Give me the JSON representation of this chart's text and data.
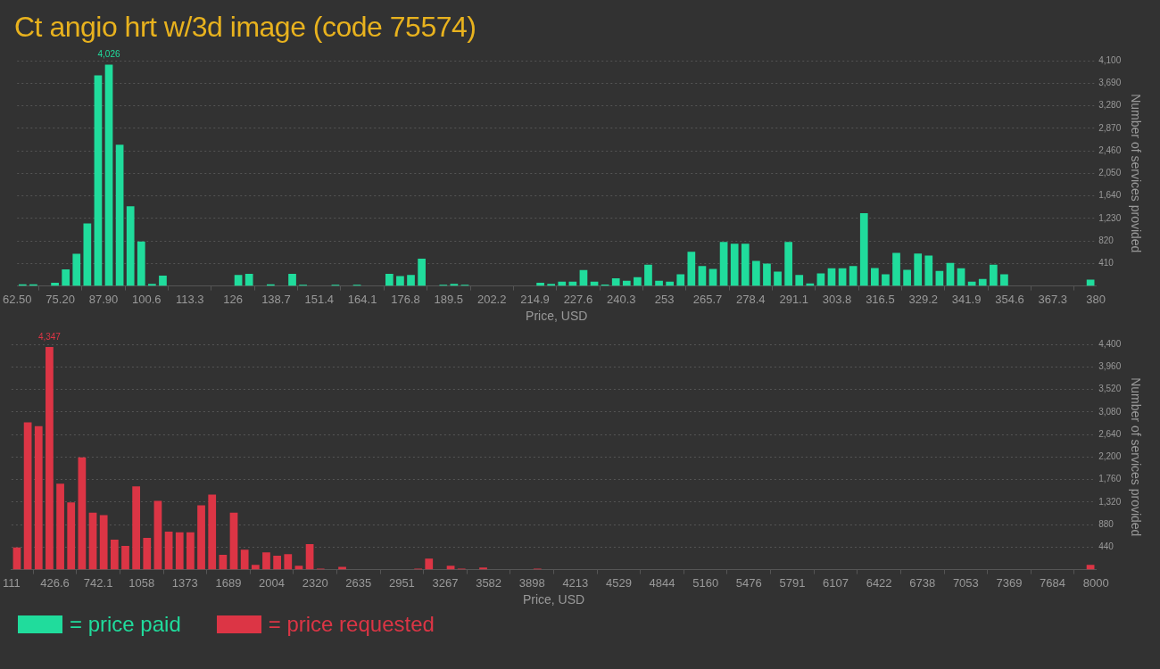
{
  "chart_data": [
    {
      "type": "histogram",
      "title": "Ct angio hrt w/3d image (code 75574)",
      "xlabel": "Price, USD",
      "ylabel": "Number of services provided",
      "grid": "y",
      "legend": "bottom left",
      "bins": [
        62.5,
        65.675,
        68.85,
        72.025,
        75.2,
        78.375,
        81.55,
        84.725,
        87.9,
        91.075,
        94.25,
        97.425,
        100.6,
        103.775,
        106.95,
        110.125,
        113.3,
        116.475,
        119.65,
        122.825,
        126,
        129.175,
        132.35,
        135.525,
        138.7,
        141.875,
        145.05,
        148.225,
        151.4,
        154.575,
        157.75,
        160.925,
        164.1,
        167.275,
        170.45,
        173.625,
        176.8,
        179.975,
        183.15,
        186.325,
        189.5,
        192.675,
        195.85,
        199.025,
        202.2,
        205.375,
        208.55,
        211.725,
        214.9,
        218.075,
        221.25,
        224.425,
        227.6,
        230.775,
        233.95,
        237.125,
        240.3,
        243.475,
        246.65,
        249.825,
        253,
        256.175,
        259.35,
        262.525,
        265.7,
        268.875,
        272.05,
        275.225,
        278.4,
        281.575,
        284.75,
        287.925,
        291.1,
        294.275,
        297.45,
        300.625,
        303.8,
        306.975,
        310.15,
        313.325,
        316.5,
        319.675,
        322.85,
        326.025,
        329.2,
        332.375,
        335.55,
        338.725,
        341.9,
        345.075,
        348.25,
        351.425,
        354.6,
        357.775,
        360.95,
        364.125,
        367.3,
        370.475,
        373.65,
        376.825,
        380
      ],
      "series": [
        {
          "name": "= price paid",
          "color": "#20dc9c",
          "values": [
            30,
            30,
            0,
            57,
            301,
            584,
            1137,
            3831,
            4026,
            2569,
            1451,
            810,
            38,
            188,
            0,
            0,
            0,
            0,
            0,
            0,
            200,
            220,
            0,
            30,
            0,
            220,
            20,
            0,
            0,
            20,
            0,
            20,
            0,
            0,
            220,
            182,
            200,
            496,
            0,
            20,
            38,
            20,
            0,
            0,
            0,
            0,
            0,
            0,
            57,
            38,
            80,
            80,
            288,
            80,
            27,
            140,
            94,
            161,
            388,
            94,
            80,
            214,
            622,
            361,
            308,
            803,
            769,
            769,
            455,
            408,
            261,
            803,
            201,
            47,
            227,
            321,
            321,
            361,
            1325,
            328,
            214,
            602,
            294,
            589,
            555,
            274,
            421,
            321,
            80,
            127,
            388,
            214,
            0,
            0,
            0,
            0,
            0,
            0,
            0,
            114
          ],
          "value_labels": [
            null,
            null,
            null,
            null,
            null,
            null,
            null,
            null,
            "4,026",
            null,
            null,
            null,
            null,
            null,
            null,
            null,
            null,
            null,
            null,
            null,
            null,
            null,
            null,
            null,
            null,
            null,
            null,
            null,
            null,
            null,
            null,
            null,
            null,
            null,
            null,
            null,
            null,
            null,
            null,
            null,
            null,
            null,
            null,
            null,
            null,
            null,
            null,
            null,
            null,
            null,
            null,
            null,
            null,
            null,
            null,
            null,
            null,
            null,
            null,
            null,
            null,
            null,
            null,
            null,
            null,
            null,
            null,
            null,
            null,
            null,
            null,
            null,
            null,
            null,
            null,
            null,
            null,
            null,
            null,
            null,
            null,
            null,
            null,
            null,
            null,
            null,
            null,
            null,
            null,
            null,
            null,
            null,
            null,
            null,
            null,
            null,
            null,
            null,
            null,
            null
          ]
        }
      ],
      "xlim": [
        62.5,
        380
      ],
      "xticks": [
        {
          "value": 62.5,
          "label": "62.50"
        },
        {
          "value": 75.2,
          "label": "75.20"
        },
        {
          "value": 87.9,
          "label": "87.90"
        },
        100.6,
        113.3,
        126,
        138.7,
        151.4,
        164.1,
        176.8,
        189.5,
        202.2,
        214.9,
        227.6,
        240.3,
        253,
        265.7,
        278.4,
        291.1,
        303.8,
        316.5,
        329.2,
        341.9,
        354.6,
        367.3,
        380
      ],
      "ylim": [
        0,
        4100
      ],
      "yticks": [
        410,
        820,
        {
          "value": 1230,
          "label": "1,230"
        },
        {
          "value": 1640,
          "label": "1,640"
        },
        {
          "value": 2050,
          "label": "2,050"
        },
        {
          "value": 2460,
          "label": "2,460"
        },
        {
          "value": 2870,
          "label": "2,870"
        },
        {
          "value": 3280,
          "label": "3,280"
        },
        {
          "value": 3690,
          "label": "3,690"
        },
        {
          "value": 4100,
          "label": "4,100"
        }
      ]
    },
    {
      "type": "histogram",
      "xlabel": "Price, USD",
      "ylabel": "Number of services provided",
      "grid": "y",
      "legend": "bottom left",
      "bins": [
        111,
        189.89,
        268.78,
        347.67,
        426.56,
        505.45,
        584.34,
        663.23,
        742.12,
        821.01,
        899.9,
        978.79,
        1057.68,
        1136.57,
        1215.46,
        1294.35,
        1373.24,
        1452.13,
        1531.02,
        1609.91,
        1688.8,
        1767.69,
        1846.58,
        1925.47,
        2004.36,
        2083.25,
        2162.14,
        2241.03,
        2319.92,
        2398.81,
        2477.7,
        2556.59,
        2635.48,
        2714.37,
        2793.26,
        2872.15,
        2951.04,
        3029.93,
        3108.82,
        3187.71,
        3266.6,
        3345.49,
        3424.38,
        3503.27,
        3582.16,
        3661.05,
        3739.94,
        3818.83,
        3897.72,
        3976.61,
        4055.5,
        4134.39,
        4213.28,
        4292.17,
        4371.06,
        4449.95,
        4528.84,
        4607.73,
        4686.62,
        4765.51,
        4844.4,
        4923.29,
        5002.18,
        5081.07,
        5159.96,
        5238.85,
        5317.74,
        5396.63,
        5475.52,
        5554.41,
        5633.3,
        5712.19,
        5791.08,
        5869.97,
        5948.86,
        6027.75,
        6106.64,
        6185.53,
        6264.42,
        6343.31,
        6422.2,
        6501.09,
        6579.98,
        6658.87,
        6737.76,
        6816.65,
        6895.54,
        6974.43,
        7053.32,
        7132.21,
        7211.1,
        7289.99,
        7368.88,
        7447.77,
        7526.66,
        7605.55,
        7684.44,
        7763.33,
        7842.22,
        7921.11,
        8000
      ],
      "series": [
        {
          "name": "= price requested",
          "color": "#dc3545",
          "values": [
            431,
            2878,
            2804,
            4347,
            1678,
            1314,
            2190,
            1112,
            1065,
            586,
            465,
            1624,
            620,
            1341,
            741,
            728,
            728,
            1254,
            1463,
            290,
            1112,
            391,
            94,
            337,
            270,
            303,
            74,
            499,
            20,
            0,
            54,
            0,
            0,
            0,
            0,
            0,
            0,
            20,
            216,
            0,
            74,
            20,
            0,
            40,
            0,
            0,
            0,
            0,
            20,
            0,
            0,
            0,
            0,
            0,
            0,
            0,
            0,
            0,
            0,
            0,
            0,
            0,
            0,
            0,
            0,
            0,
            0,
            0,
            0,
            0,
            0,
            0,
            0,
            0,
            0,
            0,
            0,
            0,
            0,
            0,
            0,
            0,
            0,
            0,
            0,
            0,
            0,
            0,
            0,
            0,
            0,
            0,
            0,
            0,
            0,
            0,
            0,
            0,
            0,
            93
          ],
          "value_labels": [
            null,
            null,
            null,
            "4,347",
            null,
            null,
            null,
            null,
            null,
            null,
            null,
            null,
            null,
            null,
            null,
            null,
            null,
            null,
            null,
            null,
            null,
            null,
            null,
            null,
            null,
            null,
            null,
            null,
            null,
            null,
            null,
            null,
            null,
            null,
            null,
            null,
            null,
            null,
            null,
            null,
            null,
            null,
            null,
            null,
            null,
            null,
            null,
            null,
            null,
            null,
            null,
            null,
            null,
            null,
            null,
            null,
            null,
            null,
            null,
            null,
            null,
            null,
            null,
            null,
            null,
            null,
            null,
            null,
            null,
            null,
            null,
            null,
            null,
            null,
            null,
            null,
            null,
            null,
            null,
            null,
            null,
            null,
            null,
            null,
            null,
            null,
            null,
            null,
            null,
            null,
            null,
            null,
            null,
            null,
            null,
            null,
            null,
            null,
            null,
            null
          ]
        }
      ],
      "xlim": [
        111,
        8000
      ],
      "xticks": [
        111,
        {
          "value": 426.56,
          "label": "426.6"
        },
        {
          "value": 742.12,
          "label": "742.1"
        },
        {
          "value": 1057.68,
          "label": "1058"
        },
        {
          "value": 1373.24,
          "label": "1373"
        },
        {
          "value": 1688.8,
          "label": "1689"
        },
        {
          "value": 2004.36,
          "label": "2004"
        },
        {
          "value": 2319.92,
          "label": "2320"
        },
        {
          "value": 2635.48,
          "label": "2635"
        },
        {
          "value": 2951.04,
          "label": "2951"
        },
        {
          "value": 3266.6,
          "label": "3267"
        },
        {
          "value": 3582.16,
          "label": "3582"
        },
        {
          "value": 3897.72,
          "label": "3898"
        },
        {
          "value": 4213.28,
          "label": "4213"
        },
        {
          "value": 4528.84,
          "label": "4529"
        },
        {
          "value": 4844.4,
          "label": "4844"
        },
        {
          "value": 5159.96,
          "label": "5160"
        },
        {
          "value": 5475.52,
          "label": "5476"
        },
        {
          "value": 5791.08,
          "label": "5791"
        },
        {
          "value": 6106.64,
          "label": "6107"
        },
        {
          "value": 6422.2,
          "label": "6422"
        },
        {
          "value": 6737.76,
          "label": "6738"
        },
        {
          "value": 7053.32,
          "label": "7053"
        },
        {
          "value": 7368.88,
          "label": "7369"
        },
        {
          "value": 7684.44,
          "label": "7684"
        },
        8000
      ],
      "ylim": [
        0,
        4400
      ],
      "yticks": [
        440,
        880,
        {
          "value": 1320,
          "label": "1,320"
        },
        {
          "value": 1760,
          "label": "1,760"
        },
        {
          "value": 2200,
          "label": "2,200"
        },
        {
          "value": 2640,
          "label": "2,640"
        },
        {
          "value": 3080,
          "label": "3,080"
        },
        {
          "value": 3520,
          "label": "3,520"
        },
        {
          "value": 3960,
          "label": "3,960"
        },
        {
          "value": 4400,
          "label": "4,400"
        }
      ]
    }
  ]
}
